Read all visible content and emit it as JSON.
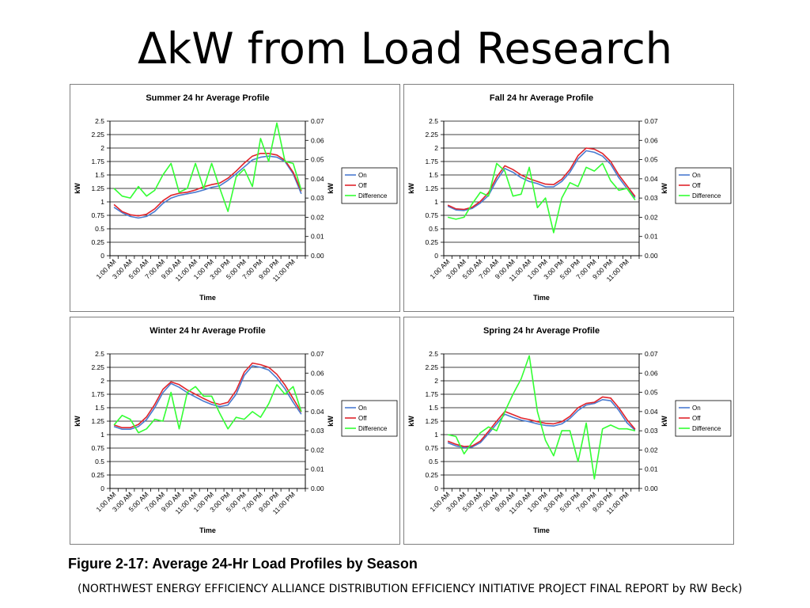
{
  "slide": {
    "title": "ΔkW from Load Research",
    "caption": "Figure 2-17:  Average 24-Hr Load Profiles by Season",
    "source": "(NORTHWEST ENERGY EFFICIENCY ALLIANCE DISTRIBUTION EFFICIENCY INITIATIVE PROJECT FINAL REPORT by RW Beck)"
  },
  "colors": {
    "on": "#4a7bd0",
    "off": "#e0242c",
    "difference": "#33ff33"
  },
  "chart_data": [
    {
      "type": "line",
      "title": "Summer 24 hr Average Profile",
      "xlabel": "Time",
      "ylabel": "kW",
      "y2label": "kW",
      "ylim": [
        0,
        2.5
      ],
      "y2lim": [
        0,
        0.07
      ],
      "yticks": [
        "0",
        "0.25",
        "0.5",
        "0.75",
        "1",
        "1.25",
        "1.5",
        "1.75",
        "2",
        "2.25",
        "2.5"
      ],
      "y2ticks": [
        "0.00",
        "0.01",
        "0.02",
        "0.03",
        "0.04",
        "0.05",
        "0.06",
        "0.07"
      ],
      "xtick_labels": [
        "1:00 AM",
        "3:00 AM",
        "5:00 AM",
        "7:00 AM",
        "9:00 AM",
        "11:00 AM",
        "1:00 PM",
        "3:00 PM",
        "5:00 PM",
        "7:00 PM",
        "9:00 PM",
        "11:00 PM"
      ],
      "grid": true,
      "legend_position": "right",
      "series": [
        {
          "name": "On",
          "axis": "left",
          "color": "#4a7bd0",
          "values": [
            0.9,
            0.8,
            0.73,
            0.7,
            0.73,
            0.82,
            0.97,
            1.07,
            1.12,
            1.15,
            1.18,
            1.22,
            1.27,
            1.3,
            1.4,
            1.52,
            1.65,
            1.78,
            1.83,
            1.85,
            1.83,
            1.75,
            1.52,
            1.15
          ]
        },
        {
          "name": "Off",
          "axis": "left",
          "color": "#e0242c",
          "values": [
            0.95,
            0.82,
            0.76,
            0.74,
            0.77,
            0.87,
            1.02,
            1.12,
            1.16,
            1.18,
            1.22,
            1.28,
            1.32,
            1.35,
            1.44,
            1.57,
            1.72,
            1.85,
            1.9,
            1.9,
            1.87,
            1.77,
            1.55,
            1.2
          ]
        },
        {
          "name": "Difference",
          "axis": "right",
          "color": "#33ff33",
          "values": [
            0.035,
            0.031,
            0.03,
            0.036,
            0.031,
            0.034,
            0.042,
            0.048,
            0.033,
            0.035,
            0.048,
            0.035,
            0.048,
            0.035,
            0.023,
            0.041,
            0.045,
            0.036,
            0.061,
            0.049,
            0.069,
            0.049,
            0.048,
            0.034
          ]
        }
      ]
    },
    {
      "type": "line",
      "title": "Fall 24 hr Average Profile",
      "xlabel": "Time",
      "ylabel": "kW",
      "y2label": "kW",
      "ylim": [
        0,
        2.5
      ],
      "y2lim": [
        0,
        0.07
      ],
      "yticks": [
        "0",
        "0.25",
        "0.5",
        "0.75",
        "1",
        "1.25",
        "1.5",
        "1.75",
        "2",
        "2.25",
        "2.5"
      ],
      "y2ticks": [
        "0.00",
        "0.01",
        "0.02",
        "0.03",
        "0.04",
        "0.05",
        "0.06",
        "0.07"
      ],
      "xtick_labels": [
        "1:00 AM",
        "3:00 AM",
        "5:00 AM",
        "7:00 AM",
        "9:00 AM",
        "11:00 AM",
        "1:00 PM",
        "3:00 PM",
        "5:00 PM",
        "7:00 PM",
        "9:00 PM",
        "11:00 PM"
      ],
      "grid": true,
      "legend_position": "right",
      "series": [
        {
          "name": "On",
          "axis": "left",
          "color": "#4a7bd0",
          "values": [
            0.92,
            0.85,
            0.84,
            0.88,
            0.98,
            1.12,
            1.4,
            1.62,
            1.55,
            1.45,
            1.38,
            1.34,
            1.28,
            1.28,
            1.38,
            1.55,
            1.8,
            1.95,
            1.92,
            1.85,
            1.7,
            1.45,
            1.25,
            1.08
          ]
        },
        {
          "name": "Off",
          "axis": "left",
          "color": "#e0242c",
          "values": [
            0.94,
            0.87,
            0.86,
            0.9,
            1.01,
            1.17,
            1.46,
            1.67,
            1.6,
            1.5,
            1.43,
            1.38,
            1.33,
            1.32,
            1.42,
            1.6,
            1.86,
            2.0,
            1.98,
            1.9,
            1.75,
            1.5,
            1.3,
            1.1
          ]
        },
        {
          "name": "Difference",
          "axis": "right",
          "color": "#33ff33",
          "values": [
            0.02,
            0.019,
            0.02,
            0.027,
            0.033,
            0.031,
            0.048,
            0.044,
            0.031,
            0.032,
            0.046,
            0.025,
            0.03,
            0.012,
            0.03,
            0.038,
            0.036,
            0.046,
            0.044,
            0.048,
            0.039,
            0.034,
            0.035,
            0.029
          ]
        }
      ]
    },
    {
      "type": "line",
      "title": "Winter 24 hr Average Profile",
      "xlabel": "Time",
      "ylabel": "kW",
      "y2label": "kW",
      "ylim": [
        0,
        2.5
      ],
      "y2lim": [
        0,
        0.07
      ],
      "yticks": [
        "0",
        "0.25",
        "0.5",
        "0.75",
        "1",
        "1.25",
        "1.5",
        "1.75",
        "2",
        "2.25",
        "2.5"
      ],
      "y2ticks": [
        "0.00",
        "0.01",
        "0.02",
        "0.03",
        "0.04",
        "0.05",
        "0.06",
        "0.07"
      ],
      "xtick_labels": [
        "1:00 AM",
        "3:00 AM",
        "5:00 AM",
        "7:00 AM",
        "9:00 AM",
        "11:00 AM",
        "1:00 PM",
        "3:00 PM",
        "5:00 PM",
        "7:00 PM",
        "9:00 PM",
        "11:00 PM"
      ],
      "grid": true,
      "legend_position": "right",
      "series": [
        {
          "name": "On",
          "axis": "left",
          "color": "#4a7bd0",
          "values": [
            1.15,
            1.1,
            1.1,
            1.15,
            1.28,
            1.5,
            1.78,
            1.95,
            1.88,
            1.78,
            1.7,
            1.62,
            1.56,
            1.52,
            1.55,
            1.75,
            2.1,
            2.28,
            2.25,
            2.2,
            2.05,
            1.85,
            1.6,
            1.38
          ]
        },
        {
          "name": "Off",
          "axis": "left",
          "color": "#e0242c",
          "values": [
            1.18,
            1.13,
            1.13,
            1.19,
            1.33,
            1.56,
            1.84,
            1.98,
            1.93,
            1.83,
            1.75,
            1.67,
            1.6,
            1.56,
            1.6,
            1.82,
            2.16,
            2.33,
            2.3,
            2.25,
            2.12,
            1.92,
            1.67,
            1.42
          ]
        },
        {
          "name": "Difference",
          "axis": "right",
          "color": "#33ff33",
          "values": [
            0.033,
            0.038,
            0.036,
            0.029,
            0.031,
            0.036,
            0.035,
            0.05,
            0.031,
            0.05,
            0.053,
            0.048,
            0.048,
            0.039,
            0.031,
            0.037,
            0.036,
            0.04,
            0.037,
            0.044,
            0.054,
            0.049,
            0.053,
            0.04
          ]
        }
      ]
    },
    {
      "type": "line",
      "title": "Spring 24 hr Average Profile",
      "xlabel": "Time",
      "ylabel": "kW",
      "y2label": "kW",
      "ylim": [
        0,
        2.5
      ],
      "y2lim": [
        0,
        0.07
      ],
      "yticks": [
        "0",
        "0.25",
        "0.5",
        "0.75",
        "1",
        "1.25",
        "1.5",
        "1.75",
        "2",
        "2.25",
        "2.5"
      ],
      "y2ticks": [
        "0.00",
        "0.01",
        "0.02",
        "0.03",
        "0.04",
        "0.05",
        "0.06",
        "0.07"
      ],
      "xtick_labels": [
        "1:00 AM",
        "3:00 AM",
        "5:00 AM",
        "7:00 AM",
        "9:00 AM",
        "11:00 AM",
        "1:00 PM",
        "3:00 PM",
        "5:00 PM",
        "7:00 PM",
        "9:00 PM",
        "11:00 PM"
      ],
      "grid": true,
      "legend_position": "right",
      "series": [
        {
          "name": "On",
          "axis": "left",
          "color": "#4a7bd0",
          "values": [
            0.85,
            0.79,
            0.76,
            0.77,
            0.85,
            1.02,
            1.2,
            1.38,
            1.32,
            1.27,
            1.24,
            1.2,
            1.17,
            1.16,
            1.2,
            1.3,
            1.45,
            1.55,
            1.58,
            1.65,
            1.63,
            1.45,
            1.22,
            1.08
          ]
        },
        {
          "name": "Off",
          "axis": "left",
          "color": "#e0242c",
          "values": [
            0.88,
            0.82,
            0.78,
            0.79,
            0.88,
            1.06,
            1.25,
            1.43,
            1.37,
            1.31,
            1.28,
            1.24,
            1.21,
            1.2,
            1.24,
            1.34,
            1.5,
            1.58,
            1.6,
            1.7,
            1.68,
            1.5,
            1.28,
            1.1
          ]
        },
        {
          "name": "Difference",
          "axis": "right",
          "color": "#33ff33",
          "values": [
            0.028,
            0.027,
            0.018,
            0.024,
            0.029,
            0.032,
            0.03,
            0.04,
            0.049,
            0.057,
            0.069,
            0.04,
            0.025,
            0.017,
            0.03,
            0.03,
            0.014,
            0.034,
            0.005,
            0.031,
            0.033,
            0.031,
            0.031,
            0.03
          ]
        }
      ]
    }
  ]
}
